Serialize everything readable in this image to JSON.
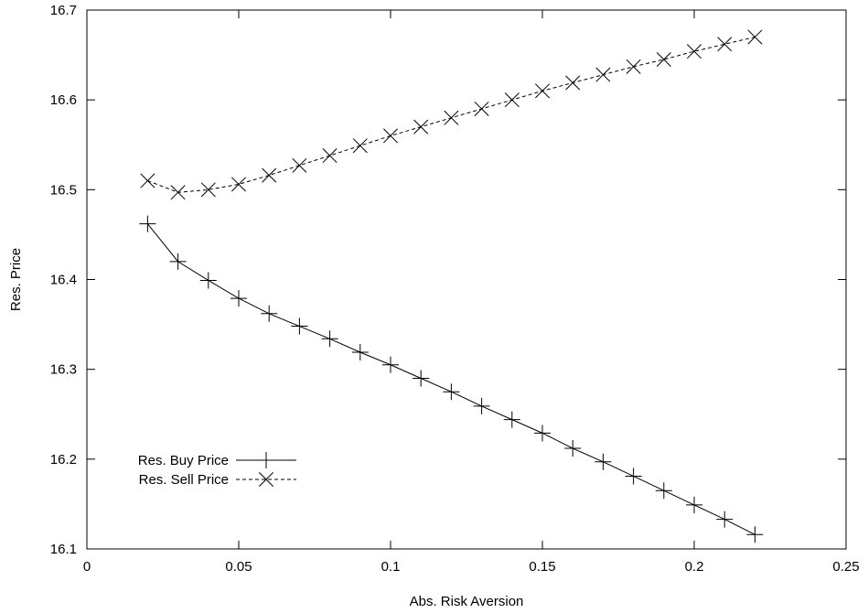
{
  "chart_data": {
    "type": "line",
    "title": "",
    "xlabel": "Abs. Risk Aversion",
    "ylabel": "Res. Price",
    "xlim": [
      0,
      0.25
    ],
    "ylim": [
      16.1,
      16.7
    ],
    "x_ticks": [
      0,
      0.05,
      0.1,
      0.15,
      0.2,
      0.25
    ],
    "x_tick_labels": [
      "0",
      "0.05",
      "0.1",
      "0.15",
      "0.2",
      "0.25"
    ],
    "y_ticks": [
      16.1,
      16.2,
      16.3,
      16.4,
      16.5,
      16.6,
      16.7
    ],
    "y_tick_labels": [
      "16.1",
      "16.2",
      "16.3",
      "16.4",
      "16.5",
      "16.6",
      "16.7"
    ],
    "grid": false,
    "legend_position": "bottom-left",
    "x": [
      0.02,
      0.03,
      0.04,
      0.05,
      0.06,
      0.07,
      0.08,
      0.09,
      0.1,
      0.11,
      0.12,
      0.13,
      0.14,
      0.15,
      0.16,
      0.17,
      0.18,
      0.19,
      0.2,
      0.21,
      0.22
    ],
    "series": [
      {
        "name": "Res. Buy Price",
        "marker": "plus",
        "line_style": "solid",
        "color": "#000000",
        "values": [
          16.462,
          16.42,
          16.399,
          16.379,
          16.362,
          16.348,
          16.334,
          16.319,
          16.305,
          16.29,
          16.275,
          16.259,
          16.244,
          16.229,
          16.212,
          16.197,
          16.181,
          16.165,
          16.149,
          16.133,
          16.116
        ]
      },
      {
        "name": "Res. Sell Price",
        "marker": "cross",
        "line_style": "dashed",
        "color": "#000000",
        "values": [
          16.51,
          16.497,
          16.5,
          16.506,
          16.516,
          16.527,
          16.538,
          16.549,
          16.56,
          16.57,
          16.58,
          16.59,
          16.6,
          16.61,
          16.619,
          16.628,
          16.637,
          16.645,
          16.654,
          16.662,
          16.67
        ]
      }
    ]
  }
}
